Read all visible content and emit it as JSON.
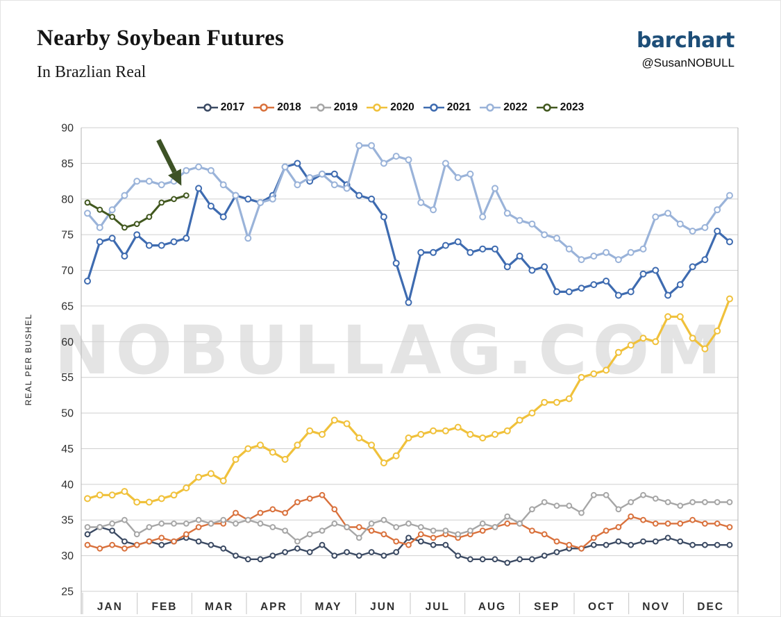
{
  "header": {
    "title": "Nearby Soybean Futures",
    "subtitle": "In Brazlian Real",
    "brand": "barchart",
    "handle": "@SusanNOBULL"
  },
  "watermark": "NOBULLAG.COM",
  "colors": {
    "brand_blue": "#1d4e78",
    "grid": "#cfcfcf",
    "axis_text": "#2f2f2f",
    "arrow_green": "#3d5226"
  },
  "chart_data": {
    "type": "line",
    "title": "Nearby Soybean Futures",
    "subtitle": "In Brazlian Real",
    "ylabel": "REAL PER BUSHEL",
    "ylim": [
      25,
      90
    ],
    "ytick_step": 5,
    "x_tick_labels": [
      "JAN",
      "FEB",
      "MAR",
      "APR",
      "MAY",
      "JUN",
      "JUL",
      "AUG",
      "SEP",
      "OCT",
      "NOV",
      "DEC"
    ],
    "x_unit": "weekly",
    "weeks_per_year": 53,
    "grid": "horizontal",
    "legend_position": "top",
    "series": [
      {
        "name": "2017",
        "color": "#3b4a63",
        "values": [
          33,
          34,
          33.5,
          32,
          31.5,
          32,
          31.5,
          32,
          32.5,
          32,
          31.5,
          31,
          30,
          29.5,
          29.5,
          30,
          30.5,
          31,
          30.5,
          31.5,
          30,
          30.5,
          30,
          30.5,
          30,
          30.5,
          32.5,
          32,
          31.5,
          31.5,
          30,
          29.5,
          29.5,
          29.5,
          29,
          29.5,
          29.5,
          30,
          30.5,
          31,
          31,
          31.5,
          31.5,
          32,
          31.5,
          32,
          32,
          32.5,
          32,
          31.5,
          31.5,
          31.5,
          31.5
        ]
      },
      {
        "name": "2018",
        "color": "#d9713c",
        "values": [
          31.5,
          31,
          31.5,
          31,
          31.5,
          32,
          32.5,
          32,
          33,
          34,
          34.5,
          34.5,
          36,
          35,
          36,
          36.5,
          36,
          37.5,
          38,
          38.5,
          36.5,
          34,
          34,
          33.5,
          33,
          32,
          31.5,
          33,
          32.5,
          33,
          32.5,
          33,
          33.5,
          34,
          34.5,
          34.5,
          33.5,
          33,
          32,
          31.5,
          31,
          32.5,
          33.5,
          34,
          35.5,
          35,
          34.5,
          34.5,
          34.5,
          35,
          34.5,
          34.5,
          34
        ]
      },
      {
        "name": "2019",
        "color": "#a6a6a6",
        "values": [
          34,
          34,
          34.5,
          35,
          33,
          34,
          34.5,
          34.5,
          34.5,
          35,
          34.5,
          35,
          34.5,
          35,
          34.5,
          34,
          33.5,
          32,
          33,
          33.5,
          34.5,
          34,
          32.5,
          34.5,
          35,
          34,
          34.5,
          34,
          33.5,
          33.5,
          33,
          33.5,
          34.5,
          34,
          35.5,
          34.5,
          36.5,
          37.5,
          37,
          37,
          36,
          38.5,
          38.5,
          36.5,
          37.5,
          38.5,
          38,
          37.5,
          37,
          37.5,
          37.5,
          37.5,
          37.5
        ]
      },
      {
        "name": "2020",
        "color": "#f0c13b",
        "values": [
          38,
          38.5,
          38.5,
          39,
          37.5,
          37.5,
          38,
          38.5,
          39.5,
          41,
          41.5,
          40.5,
          43.5,
          45,
          45.5,
          44.5,
          43.5,
          45.5,
          47.5,
          47,
          49,
          48.5,
          46.5,
          45.5,
          43,
          44,
          46.5,
          47,
          47.5,
          47.5,
          48,
          47,
          46.5,
          47,
          47.5,
          49,
          50,
          51.5,
          51.5,
          52,
          55,
          55.5,
          56,
          58.5,
          59.5,
          60.5,
          60,
          63.5,
          63.5,
          60.5,
          59,
          61.5,
          66
        ]
      },
      {
        "name": "2021",
        "color": "#3e6bb0",
        "values": [
          68.5,
          74,
          74.5,
          72,
          75,
          73.5,
          73.5,
          74,
          74.5,
          81.5,
          79,
          77.5,
          80.5,
          80,
          79.5,
          80.5,
          84.5,
          85,
          82.5,
          83.5,
          83.5,
          82,
          80.5,
          80,
          77.5,
          71,
          65.5,
          72.5,
          72.5,
          73.5,
          74,
          72.5,
          73,
          73,
          70.5,
          72,
          70,
          70.5,
          67,
          67,
          67.5,
          68,
          68.5,
          66.5,
          67,
          69.5,
          70,
          66.5,
          68,
          70.5,
          71.5,
          75.5,
          74
        ]
      },
      {
        "name": "2022",
        "color": "#9ab3d9",
        "values": [
          78,
          76,
          78.5,
          80.5,
          82.5,
          82.5,
          82,
          82.5,
          84,
          84.5,
          84,
          82,
          80.5,
          74.5,
          79.5,
          80,
          84.5,
          82,
          83,
          83.5,
          82,
          81.5,
          87.5,
          87.5,
          85,
          86,
          85.5,
          79.5,
          78.5,
          85,
          83,
          83.5,
          77.5,
          81.5,
          78,
          77,
          76.5,
          75,
          74.5,
          73,
          71.5,
          72,
          72.5,
          71.5,
          72.5,
          73,
          77.5,
          78,
          76.5,
          75.5,
          76,
          78.5,
          80.5
        ]
      },
      {
        "name": "2023",
        "color": "#42581f",
        "values": [
          79.5,
          78.5,
          77.5,
          76,
          76.5,
          77.5,
          79.5,
          80,
          80.5
        ]
      }
    ],
    "annotation": {
      "shape": "arrow",
      "series": "2023",
      "color": "#3d5226"
    }
  }
}
